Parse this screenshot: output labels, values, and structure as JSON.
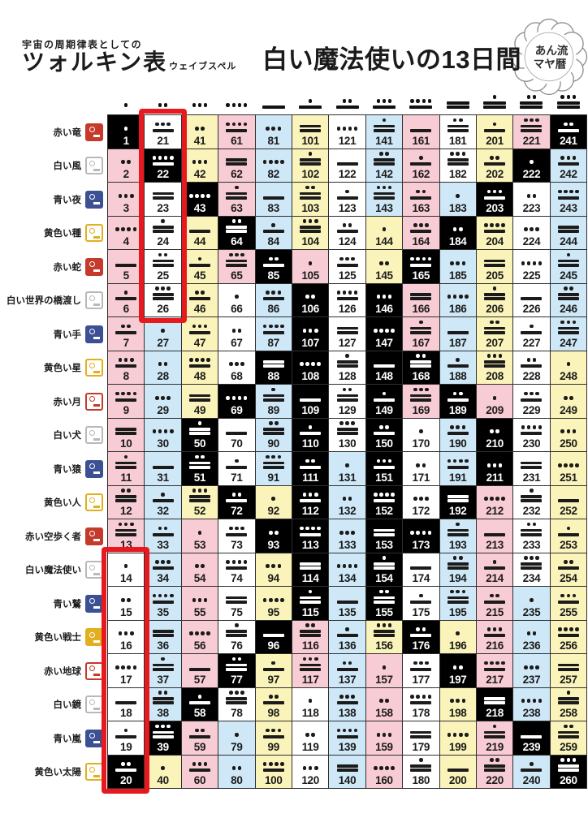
{
  "header": {
    "subtitle_small": "宇宙の周期律表としての",
    "title_main": "ツォルキン表",
    "title_sub": "ウェイブスペル",
    "title_right": "白い魔法使いの13日間",
    "badge_line1": "あん流",
    "badge_line2": "マヤ暦"
  },
  "colors": {
    "cell_pink": "#f8ccd4",
    "cell_blue": "#cfe8f7",
    "cell_yellow": "#fbf4ba",
    "cell_white": "#ffffff",
    "cell_black": "#000000",
    "gap_text": "#ffffff",
    "text": "#1b1b1b",
    "grid_line": "#2f2f2f",
    "highlight_red": "#e8191e",
    "seal_red": "#c53a2b",
    "seal_blue": "#3c5094",
    "seal_yellow": "#e2af1e",
    "seal_gray": "#b9b9b9"
  },
  "seals": [
    {
      "label": "赤い竜",
      "color": "seal_red",
      "filled": true,
      "icon": "red-dragon-icon"
    },
    {
      "label": "白い風",
      "color": "seal_gray",
      "filled": false,
      "icon": "white-wind-icon"
    },
    {
      "label": "青い夜",
      "color": "seal_blue",
      "filled": true,
      "icon": "blue-night-icon"
    },
    {
      "label": "黄色い種",
      "color": "seal_yellow",
      "filled": false,
      "icon": "yellow-seed-icon"
    },
    {
      "label": "赤い蛇",
      "color": "seal_red",
      "filled": true,
      "icon": "red-serpent-icon"
    },
    {
      "label": "白い世界の橋渡し",
      "color": "seal_gray",
      "filled": false,
      "icon": "white-worldbridger-icon"
    },
    {
      "label": "青い手",
      "color": "seal_blue",
      "filled": true,
      "icon": "blue-hand-icon"
    },
    {
      "label": "黄色い星",
      "color": "seal_yellow",
      "filled": false,
      "icon": "yellow-star-icon"
    },
    {
      "label": "赤い月",
      "color": "seal_red",
      "filled": false,
      "icon": "red-moon-icon"
    },
    {
      "label": "白い犬",
      "color": "seal_gray",
      "filled": false,
      "icon": "white-dog-icon"
    },
    {
      "label": "青い猿",
      "color": "seal_blue",
      "filled": true,
      "icon": "blue-monkey-icon"
    },
    {
      "label": "黄色い人",
      "color": "seal_yellow",
      "filled": false,
      "icon": "yellow-human-icon"
    },
    {
      "label": "赤い空歩く者",
      "color": "seal_red",
      "filled": true,
      "icon": "red-skywalker-icon"
    },
    {
      "label": "白い魔法使い",
      "color": "seal_gray",
      "filled": false,
      "icon": "white-wizard-icon"
    },
    {
      "label": "青い鷲",
      "color": "seal_blue",
      "filled": true,
      "icon": "blue-eagle-icon"
    },
    {
      "label": "黄色い戦士",
      "color": "seal_yellow",
      "filled": true,
      "icon": "yellow-warrior-icon"
    },
    {
      "label": "赤い地球",
      "color": "seal_red",
      "filled": false,
      "icon": "red-earth-icon"
    },
    {
      "label": "白い鏡",
      "color": "seal_gray",
      "filled": false,
      "icon": "white-mirror-icon"
    },
    {
      "label": "青い嵐",
      "color": "seal_blue",
      "filled": true,
      "icon": "blue-storm-icon"
    },
    {
      "label": "黄色い太陽",
      "color": "seal_yellow",
      "filled": false,
      "icon": "yellow-sun-icon"
    }
  ],
  "table": {
    "rows": 20,
    "columns": 13,
    "kin_first": 1,
    "kin_last": 260,
    "kin_order": "column-major: kin = (column-1)*20 + row",
    "tone_formula": "tone = ((kin-1) mod 13) + 1; glyph = (tone mod 5) dots over floor(tone/5) bars",
    "header_tones": [
      1,
      2,
      3,
      4,
      5,
      6,
      7,
      8,
      9,
      10,
      11,
      12,
      13
    ],
    "wavespells": [
      {
        "start": 1,
        "end": 13,
        "color": "pink"
      },
      {
        "start": 14,
        "end": 26,
        "color": "white"
      },
      {
        "start": 27,
        "end": 39,
        "color": "blue"
      },
      {
        "start": 40,
        "end": 52,
        "color": "yellow"
      },
      {
        "start": 53,
        "end": 65,
        "color": "pink"
      },
      {
        "start": 66,
        "end": 78,
        "color": "white"
      },
      {
        "start": 79,
        "end": 91,
        "color": "blue"
      },
      {
        "start": 92,
        "end": 104,
        "color": "yellow"
      },
      {
        "start": 105,
        "end": 117,
        "color": "pink"
      },
      {
        "start": 118,
        "end": 130,
        "color": "white"
      },
      {
        "start": 131,
        "end": 143,
        "color": "blue"
      },
      {
        "start": 144,
        "end": 156,
        "color": "yellow"
      },
      {
        "start": 157,
        "end": 169,
        "color": "pink"
      },
      {
        "start": 170,
        "end": 182,
        "color": "white"
      },
      {
        "start": 183,
        "end": 195,
        "color": "blue"
      },
      {
        "start": 196,
        "end": 208,
        "color": "yellow"
      },
      {
        "start": 209,
        "end": 221,
        "color": "pink"
      },
      {
        "start": 222,
        "end": 234,
        "color": "white"
      },
      {
        "start": 235,
        "end": 247,
        "color": "blue"
      },
      {
        "start": 248,
        "end": 260,
        "color": "yellow"
      }
    ],
    "gap_kins": [
      1,
      20,
      22,
      39,
      43,
      50,
      51,
      58,
      64,
      69,
      72,
      77,
      85,
      88,
      93,
      96,
      106,
      107,
      108,
      109,
      110,
      111,
      112,
      113,
      114,
      115,
      146,
      147,
      148,
      149,
      150,
      151,
      152,
      153,
      154,
      155,
      165,
      168,
      173,
      176,
      184,
      189,
      192,
      197,
      203,
      210,
      211,
      218,
      222,
      239,
      241,
      260
    ],
    "highlight_boxes": [
      {
        "kin_start": 14,
        "kin_end": 20,
        "column": 1,
        "rows": "14-20"
      },
      {
        "kin_start": 21,
        "kin_end": 26,
        "column": 2,
        "rows": "1-6"
      }
    ]
  }
}
